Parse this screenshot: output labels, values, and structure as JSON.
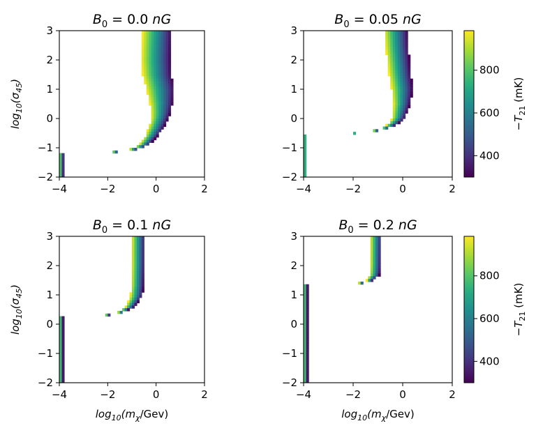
{
  "chart_data": [
    {
      "type": "heatmap",
      "title": "B_0 = 0.0 nG",
      "title_parts": {
        "sym": "B",
        "sub": "0",
        "eq": " = 0.0 ",
        "unit": "nG"
      },
      "xlabel": "",
      "ylabel_parts": {
        "pre": "log",
        "sub": "10",
        "open": "(",
        "sym": "σ",
        "sub2": "45",
        "close": ")"
      },
      "xlim": [
        -4,
        2
      ],
      "ylim": [
        -2,
        3
      ],
      "xticks": [
        -4,
        -2,
        0,
        2
      ],
      "yticks": [
        -2,
        -1,
        0,
        1,
        2,
        3
      ],
      "band": {
        "boundary": [
          [
            3.0,
            -0.55
          ],
          [
            2.5,
            -0.58
          ],
          [
            2.0,
            -0.6
          ],
          [
            1.5,
            -0.55
          ],
          [
            1.0,
            -0.4
          ],
          [
            0.5,
            -0.25
          ],
          [
            0.2,
            -0.2
          ],
          [
            0.0,
            -0.2
          ],
          [
            -0.3,
            -0.3
          ],
          [
            -0.6,
            -0.45
          ],
          [
            -0.85,
            -0.65
          ],
          [
            -1.0,
            -0.9
          ],
          [
            -1.1,
            -1.3
          ],
          [
            -1.15,
            -2.0
          ],
          [
            -1.2,
            -4.0
          ]
        ],
        "width": [
          [
            3.0,
            1.2
          ],
          [
            2.0,
            1.2
          ],
          [
            1.0,
            1.15
          ],
          [
            0.0,
            0.7
          ],
          [
            -0.5,
            0.55
          ],
          [
            -1.0,
            0.35
          ],
          [
            -1.2,
            0.18
          ],
          [
            -4.0,
            0.14
          ]
        ]
      }
    },
    {
      "type": "heatmap",
      "title": "B_0 = 0.05 nG",
      "title_parts": {
        "sym": "B",
        "sub": "0",
        "eq": " = 0.05 ",
        "unit": "nG"
      },
      "xlabel": "",
      "ylabel_parts": null,
      "xlim": [
        -4,
        2
      ],
      "ylim": [
        -2,
        3
      ],
      "xticks": [
        -4,
        -2,
        0,
        2
      ],
      "yticks": [
        -2,
        -1,
        0,
        1,
        2,
        3
      ],
      "band": {
        "boundary": [
          [
            3.0,
            -0.75
          ],
          [
            2.5,
            -0.7
          ],
          [
            2.0,
            -0.63
          ],
          [
            1.5,
            -0.55
          ],
          [
            1.0,
            -0.45
          ],
          [
            0.5,
            -0.38
          ],
          [
            0.0,
            -0.42
          ],
          [
            -0.2,
            -0.6
          ],
          [
            -0.35,
            -0.9
          ],
          [
            -0.45,
            -1.4
          ],
          [
            -0.5,
            -2.0
          ],
          [
            -0.5,
            -4.0
          ]
        ],
        "width": [
          [
            3.0,
            0.95
          ],
          [
            1.0,
            0.85
          ],
          [
            0.0,
            0.5
          ],
          [
            -0.3,
            0.3
          ],
          [
            -0.5,
            0.14
          ]
        ]
      }
    },
    {
      "type": "heatmap",
      "title": "B_0 = 0.1 nG",
      "title_parts": {
        "sym": "B",
        "sub": "0",
        "eq": " = 0.1 ",
        "unit": "nG"
      },
      "xlabel_parts": {
        "pre": "log",
        "sub": "10",
        "open": "(",
        "sym": "m",
        "subsym": "χ",
        "rest": "/Gev)"
      },
      "ylabel_parts": {
        "pre": "log",
        "sub": "10",
        "open": "(",
        "sym": "σ",
        "sub2": "45",
        "close": ")"
      },
      "xlim": [
        -4,
        2
      ],
      "ylim": [
        -2,
        3
      ],
      "xticks": [
        -4,
        -2,
        0,
        2
      ],
      "yticks": [
        -2,
        -1,
        0,
        1,
        2,
        3
      ],
      "band": {
        "boundary": [
          [
            3.0,
            -1.0
          ],
          [
            2.0,
            -1.0
          ],
          [
            1.3,
            -1.02
          ],
          [
            0.9,
            -1.08
          ],
          [
            0.6,
            -1.25
          ],
          [
            0.4,
            -1.6
          ],
          [
            0.3,
            -2.2
          ],
          [
            0.28,
            -4.0
          ]
        ],
        "width": [
          [
            3.0,
            0.55
          ],
          [
            1.0,
            0.5
          ],
          [
            0.6,
            0.35
          ],
          [
            0.3,
            0.16
          ]
        ]
      }
    },
    {
      "type": "heatmap",
      "title": "B_0 = 0.2 nG",
      "title_parts": {
        "sym": "B",
        "sub": "0",
        "eq": " = 0.2 ",
        "unit": "nG"
      },
      "xlabel_parts": {
        "pre": "log",
        "sub": "10",
        "open": "(",
        "sym": "m",
        "subsym": "χ",
        "rest": "/Gev)"
      },
      "ylabel_parts": null,
      "xlim": [
        -4,
        2
      ],
      "ylim": [
        -2,
        3
      ],
      "xticks": [
        -4,
        -2,
        0,
        2
      ],
      "yticks": [
        -2,
        -1,
        0,
        1,
        2,
        3
      ],
      "band": {
        "boundary": [
          [
            3.0,
            -1.3
          ],
          [
            2.0,
            -1.3
          ],
          [
            1.7,
            -1.32
          ],
          [
            1.5,
            -1.45
          ],
          [
            1.4,
            -1.8
          ],
          [
            1.35,
            -2.5
          ],
          [
            1.33,
            -4.0
          ]
        ],
        "width": [
          [
            3.0,
            0.45
          ],
          [
            1.7,
            0.4
          ],
          [
            1.45,
            0.2
          ],
          [
            1.35,
            0.16
          ]
        ]
      }
    }
  ],
  "colorbar": {
    "label_parts": {
      "pre": "−",
      "sym": "T",
      "sub": "21",
      "rest": " (mK)"
    },
    "range": [
      300,
      985
    ],
    "ticks": [
      400,
      600,
      800
    ],
    "colormap": "viridis"
  }
}
